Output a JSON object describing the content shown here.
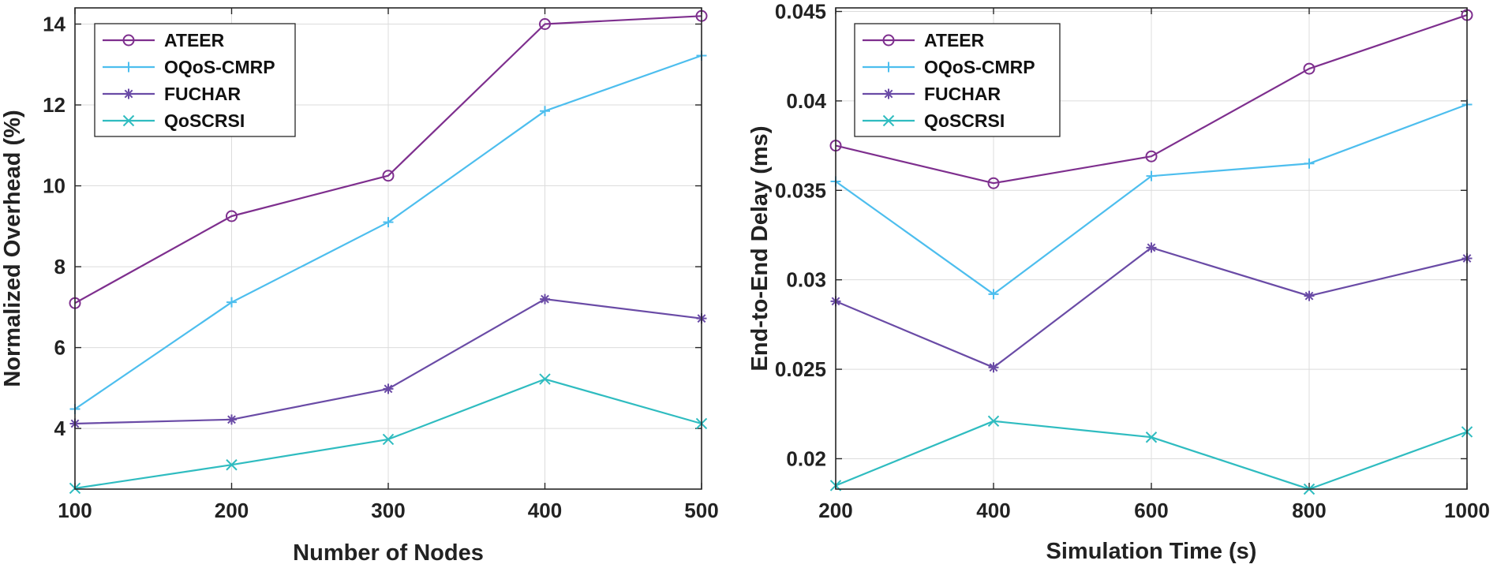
{
  "chart_data": [
    {
      "type": "line",
      "title": "",
      "xlabel": "Number of Nodes",
      "ylabel": "Normalized Overhead (%)",
      "x": [
        100,
        200,
        300,
        400,
        500
      ],
      "xlim": [
        100,
        500
      ],
      "ylim": [
        2.5,
        14.4
      ],
      "xticks": [
        100,
        200,
        300,
        400,
        500
      ],
      "yticks": [
        4,
        6,
        8,
        10,
        12,
        14
      ],
      "ytick_labels": [
        "4",
        "6",
        "8",
        "10",
        "12",
        "14"
      ],
      "grid": true,
      "legend_location": "top-left",
      "series": [
        {
          "name": "ATEER",
          "color": "#7e2f8e",
          "marker": "o",
          "values": [
            7.1,
            9.25,
            10.25,
            14.0,
            14.2
          ]
        },
        {
          "name": "OQoS-CMRP",
          "color": "#4dbeee",
          "marker": "+",
          "values": [
            4.48,
            7.12,
            9.1,
            11.85,
            13.22
          ]
        },
        {
          "name": "FUCHAR",
          "color": "#6a4ba6",
          "marker": "*",
          "values": [
            4.12,
            4.22,
            4.98,
            7.2,
            6.72
          ]
        },
        {
          "name": "QoSCRSI",
          "color": "#2fbcc0",
          "marker": "x",
          "values": [
            2.52,
            3.1,
            3.73,
            5.22,
            4.12
          ]
        }
      ]
    },
    {
      "type": "line",
      "title": "",
      "xlabel": "Simulation Time (s)",
      "ylabel": "End-to-End Delay (ms)",
      "x": [
        200,
        400,
        600,
        800,
        1000
      ],
      "xlim": [
        200,
        1000
      ],
      "ylim": [
        0.0183,
        0.0452
      ],
      "xticks": [
        200,
        400,
        600,
        800,
        1000
      ],
      "yticks": [
        0.02,
        0.025,
        0.03,
        0.035,
        0.04,
        0.045
      ],
      "ytick_labels": [
        "0.02",
        "0.025",
        "0.03",
        "0.035",
        "0.04",
        "0.045"
      ],
      "grid": true,
      "legend_location": "top-left",
      "series": [
        {
          "name": "ATEER",
          "color": "#7e2f8e",
          "marker": "o",
          "values": [
            0.0375,
            0.0354,
            0.0369,
            0.0418,
            0.0448
          ]
        },
        {
          "name": "OQoS-CMRP",
          "color": "#4dbeee",
          "marker": "+",
          "values": [
            0.0355,
            0.0292,
            0.0358,
            0.0365,
            0.0398
          ]
        },
        {
          "name": "FUCHAR",
          "color": "#6a4ba6",
          "marker": "*",
          "values": [
            0.0288,
            0.0251,
            0.0318,
            0.0291,
            0.0312
          ]
        },
        {
          "name": "QoSCRSI",
          "color": "#2fbcc0",
          "marker": "x",
          "values": [
            0.0185,
            0.0221,
            0.0212,
            0.0183,
            0.0215
          ]
        }
      ]
    }
  ]
}
